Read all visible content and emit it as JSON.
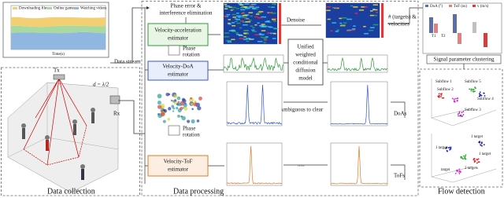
{
  "traffic_chart": {
    "legend": [
      "Downloading files",
      "Online games",
      "Watching videos"
    ],
    "x_label": "Time(s)"
  },
  "data_stream": "Data stream",
  "antennas": {
    "tx": "Tx",
    "rx": "Rx",
    "spacing": "d = λ/2"
  },
  "processing": {
    "phase_error": [
      "Phase error &",
      "interference elimination"
    ],
    "va_estimator": [
      "Velocity-acceleration",
      "estimator"
    ],
    "phase_rotation_1": [
      "Phase",
      "rotation"
    ],
    "doa_estimator": [
      "Velocity-DoA",
      "estimator"
    ],
    "phase_rotation_2": [
      "Phase",
      "rotation"
    ],
    "tof_estimator": [
      "Velocity-ToF",
      "estimator"
    ],
    "denoise": "Denoise",
    "model": [
      "Unified",
      "weighted",
      "conditional",
      "diffusion",
      "model"
    ],
    "ambiguous": "Ambiguous to clear",
    "targets": [
      "# (targets) &",
      "velocities"
    ],
    "doas": "DoAs",
    "tofs": "ToFs",
    "dots": "....."
  },
  "detection": {
    "legend": [
      "DoA (°)",
      "ToF (ns)",
      "v (m/s)"
    ],
    "bar_labels": [
      "T1",
      "T2"
    ],
    "clustering": "Signal parameter clustering",
    "subflows": [
      "Subflow 1",
      "Subflow 2",
      "Subflow 3",
      "Subflow 4",
      "Subflow 5"
    ],
    "targets": [
      "1 target",
      "1 target",
      "2 targets",
      "1 target",
      "target"
    ]
  },
  "sections": {
    "collection": "Data collection",
    "processing": "Data processing",
    "detection": "Flow detection"
  }
}
